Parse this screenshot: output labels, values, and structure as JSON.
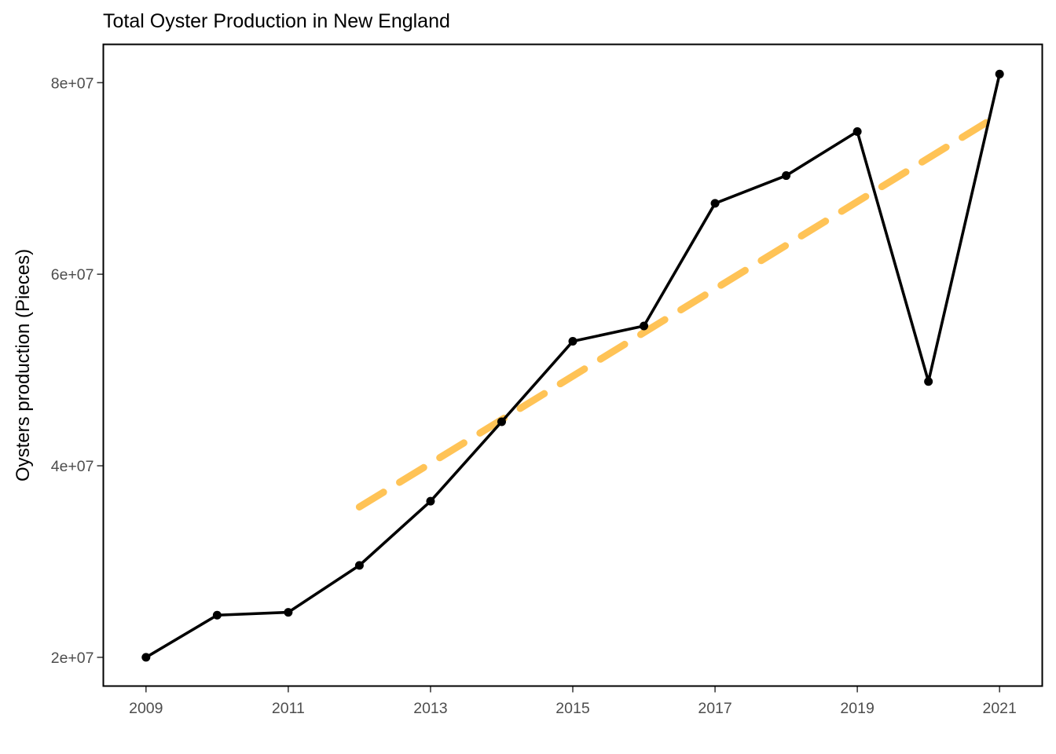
{
  "chart_data": {
    "type": "line",
    "title": "Total Oyster Production in New England",
    "xlabel": "",
    "ylabel": "Oysters production (Pieces)",
    "x": [
      2009,
      2010,
      2011,
      2012,
      2013,
      2014,
      2015,
      2016,
      2017,
      2018,
      2019,
      2020,
      2021
    ],
    "xticks": [
      2009,
      2011,
      2013,
      2015,
      2017,
      2019,
      2021
    ],
    "xtick_labels": [
      "2009",
      "2011",
      "2013",
      "2015",
      "2017",
      "2019",
      "2021"
    ],
    "yticks": [
      20000000,
      40000000,
      60000000,
      80000000
    ],
    "ytick_labels": [
      "2e+07",
      "4e+07",
      "6e+07",
      "8e+07"
    ],
    "xlim": [
      2008.4,
      2021.6
    ],
    "ylim": [
      17000000,
      84000000
    ],
    "grid": false,
    "series": [
      {
        "style": "line+points",
        "color": "#000000",
        "values": [
          20000000,
          24400000,
          24700000,
          29600000,
          36300000,
          44600000,
          53000000,
          54600000,
          67400000,
          70300000,
          74900000,
          48800000,
          80900000
        ]
      }
    ],
    "trend": {
      "style": "dashed",
      "color": "#FFC04D",
      "x": [
        2012,
        2020.85
      ],
      "y": [
        35700000,
        76000000
      ]
    }
  }
}
